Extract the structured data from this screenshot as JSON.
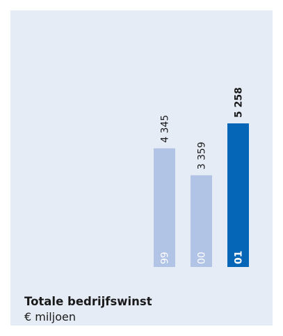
{
  "chart_data": {
    "type": "bar",
    "title": "Totale bedrijfswinst",
    "subtitle": "€ miljoen",
    "categories": [
      "99",
      "00",
      "01"
    ],
    "values": [
      4345,
      3359,
      5258
    ],
    "value_labels": [
      "4 345",
      "3 359",
      "5 258"
    ],
    "highlight_index": 2,
    "colors": {
      "bar": "#b2c4e6",
      "highlight": "#0566b8",
      "panel": "#e6ecf6",
      "text": "#1a1a1a"
    },
    "ylim": [
      0,
      5258
    ],
    "grid": false,
    "legend": "none"
  }
}
